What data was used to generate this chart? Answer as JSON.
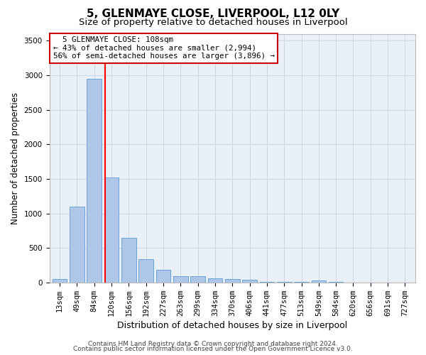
{
  "title1": "5, GLENMAYE CLOSE, LIVERPOOL, L12 0LY",
  "title2": "Size of property relative to detached houses in Liverpool",
  "xlabel": "Distribution of detached houses by size in Liverpool",
  "ylabel": "Number of detached properties",
  "categories": [
    "13sqm",
    "49sqm",
    "84sqm",
    "120sqm",
    "156sqm",
    "192sqm",
    "227sqm",
    "263sqm",
    "299sqm",
    "334sqm",
    "370sqm",
    "406sqm",
    "441sqm",
    "477sqm",
    "513sqm",
    "549sqm",
    "584sqm",
    "620sqm",
    "656sqm",
    "691sqm",
    "727sqm"
  ],
  "values": [
    50,
    1100,
    2950,
    1520,
    650,
    340,
    185,
    90,
    95,
    55,
    50,
    35,
    5,
    5,
    5,
    30,
    5,
    2,
    2,
    2,
    2
  ],
  "bar_color": "#aec6e8",
  "bar_edge_color": "#5b9bd5",
  "grid_color": "#d0d8e8",
  "bg_color": "#eaf0f8",
  "red_line_x": 2.62,
  "annotation_text": "  5 GLENMAYE CLOSE: 108sqm\n← 43% of detached houses are smaller (2,994)\n56% of semi-detached houses are larger (3,896) →",
  "annotation_box_color": "#cc0000",
  "ylim": [
    0,
    3600
  ],
  "yticks": [
    0,
    500,
    1000,
    1500,
    2000,
    2500,
    3000,
    3500
  ],
  "footer1": "Contains HM Land Registry data © Crown copyright and database right 2024.",
  "footer2": "Contains public sector information licensed under the Open Government Licence v3.0.",
  "title1_fontsize": 11,
  "title2_fontsize": 9.5,
  "xlabel_fontsize": 9,
  "ylabel_fontsize": 8.5,
  "tick_fontsize": 7.5,
  "annot_fontsize": 7.8,
  "footer_fontsize": 6.5
}
